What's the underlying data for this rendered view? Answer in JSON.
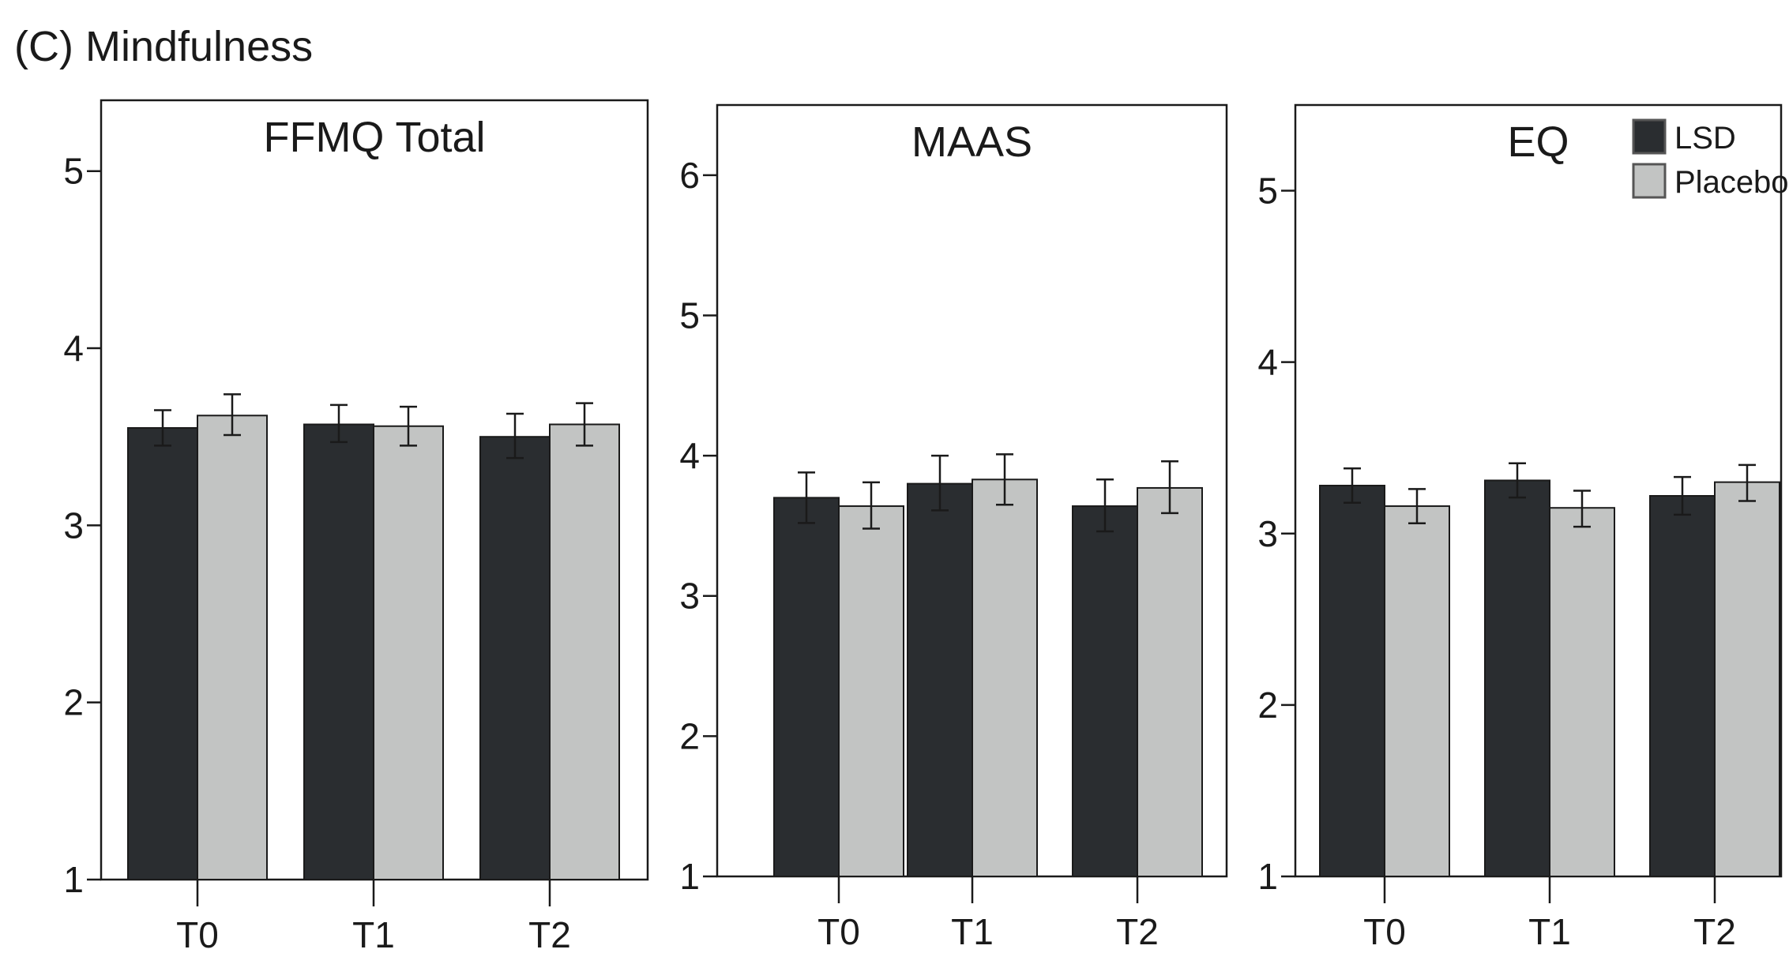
{
  "figure_title": "(C) Mindfulness",
  "colors": {
    "LSD": "#2a2d30",
    "Placebo": "#c2c4c3",
    "frame": "#1a1a1a"
  },
  "legend": {
    "placement": "top-right",
    "entries": [
      "LSD",
      "Placebo"
    ]
  },
  "chart_data": [
    {
      "type": "bar",
      "title": "FFMQ Total",
      "categories": [
        "T0",
        "T1",
        "T2"
      ],
      "ylim": [
        1,
        5.4
      ],
      "yticks": [
        1,
        2,
        3,
        4,
        5
      ],
      "series": [
        {
          "name": "LSD",
          "values": [
            3.55,
            3.57,
            3.5
          ],
          "err_low": [
            3.45,
            3.47,
            3.38
          ],
          "err_high": [
            3.65,
            3.68,
            3.63
          ]
        },
        {
          "name": "Placebo",
          "values": [
            3.62,
            3.56,
            3.57
          ],
          "err_low": [
            3.51,
            3.45,
            3.45
          ],
          "err_high": [
            3.74,
            3.67,
            3.69
          ]
        }
      ]
    },
    {
      "type": "bar",
      "title": "MAAS",
      "categories": [
        "T0",
        "T1",
        "T2"
      ],
      "ylim": [
        1,
        6.5
      ],
      "yticks": [
        1,
        2,
        3,
        4,
        5,
        6
      ],
      "series": [
        {
          "name": "LSD",
          "values": [
            3.7,
            3.8,
            3.64
          ],
          "err_low": [
            3.52,
            3.61,
            3.46
          ],
          "err_high": [
            3.88,
            4.0,
            3.83
          ]
        },
        {
          "name": "Placebo",
          "values": [
            3.64,
            3.83,
            3.77
          ],
          "err_low": [
            3.48,
            3.65,
            3.59
          ],
          "err_high": [
            3.81,
            4.01,
            3.96
          ]
        }
      ]
    },
    {
      "type": "bar",
      "title": "EQ",
      "categories": [
        "T0",
        "T1",
        "T2"
      ],
      "ylim": [
        1,
        5.5
      ],
      "yticks": [
        1,
        2,
        3,
        4,
        5
      ],
      "series": [
        {
          "name": "LSD",
          "values": [
            3.28,
            3.31,
            3.22
          ],
          "err_low": [
            3.18,
            3.21,
            3.11
          ],
          "err_high": [
            3.38,
            3.41,
            3.33
          ]
        },
        {
          "name": "Placebo",
          "values": [
            3.16,
            3.15,
            3.3
          ],
          "err_low": [
            3.06,
            3.04,
            3.19
          ],
          "err_high": [
            3.26,
            3.25,
            3.4
          ]
        }
      ]
    }
  ]
}
